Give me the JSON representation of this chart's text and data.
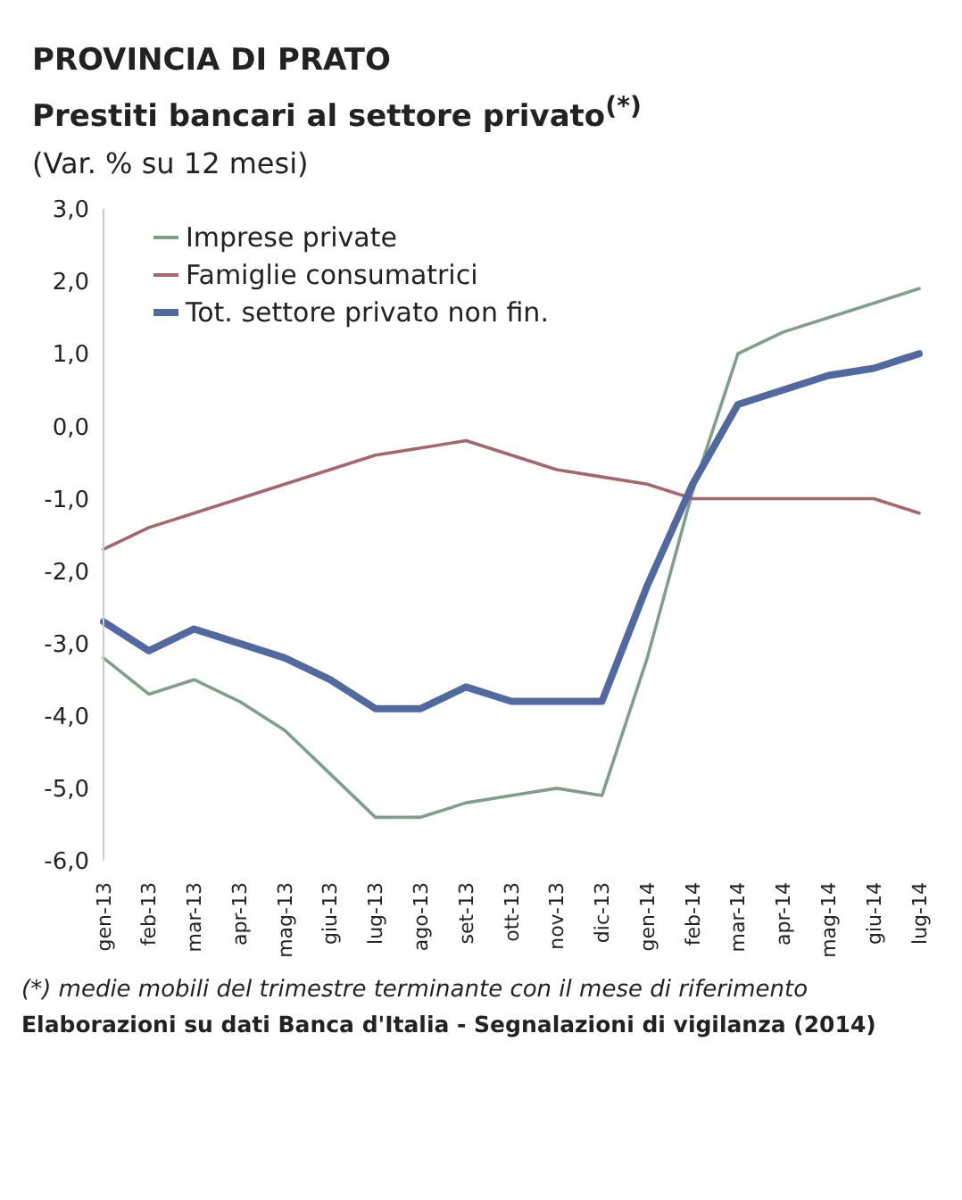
{
  "chart_data": {
    "type": "line",
    "title": "PROVINCIA DI PRATO",
    "subtitle": "Prestiti bancari al settore privato$^{(*)}$",
    "ylabel": "(Var. % su 12 mesi)",
    "categories": [
      "gen-13",
      "feb-13",
      "mar-13",
      "apr-13",
      "mag-13",
      "giu-13",
      "lug-13",
      "ago-13",
      "set-13",
      "ott-13",
      "nov-13",
      "dic-13",
      "gen-14",
      "feb-14",
      "mar-14",
      "apr-14",
      "mag-14",
      "giu-14",
      "lug-14"
    ],
    "series": [
      {
        "name": "Imprese private",
        "color": "#7f9f8c",
        "values": [
          -3.2,
          -3.7,
          -3.5,
          -3.8,
          -4.2,
          -4.8,
          -5.4,
          -5.4,
          -5.2,
          -5.1,
          -5.0,
          -5.1,
          -3.2,
          -0.9,
          1.0,
          1.3,
          1.5,
          1.7,
          1.9
        ]
      },
      {
        "name": "Famiglie consumatrici",
        "color": "#a5666e",
        "values": [
          -1.7,
          -1.4,
          -1.2,
          -1.0,
          -0.8,
          -0.6,
          -0.4,
          -0.3,
          -0.2,
          -0.4,
          -0.6,
          -0.7,
          -0.8,
          -1.0,
          -1.0,
          -1.0,
          -1.0,
          -1.0,
          -1.2
        ]
      },
      {
        "name": "Tot. settore privato non fin.",
        "color": "#5168a0",
        "values": [
          -2.7,
          -3.1,
          -2.8,
          -3.0,
          -3.2,
          -3.5,
          -3.9,
          -3.9,
          -3.6,
          -3.8,
          -3.8,
          -3.8,
          -2.2,
          -0.8,
          0.3,
          0.5,
          0.7,
          0.8,
          1.0
        ]
      }
    ],
    "ylim": [
      -6,
      3
    ],
    "yticks": [
      {
        "value": 3,
        "label": "3,0"
      },
      {
        "value": 2,
        "label": "2,0"
      },
      {
        "value": 1,
        "label": "1,0"
      },
      {
        "value": 0,
        "label": "0,0"
      },
      {
        "value": -1,
        "label": "-1,0"
      },
      {
        "value": -2,
        "label": "-2,0"
      },
      {
        "value": -3,
        "label": "-3,0"
      },
      {
        "value": -4,
        "label": "-4,0"
      },
      {
        "value": -5,
        "label": "-5,0"
      },
      {
        "value": -6,
        "label": "-6,0"
      }
    ],
    "legend": "top left",
    "grid": false,
    "marker": "none",
    "line_style": "solid",
    "annotations": [
      "(*) medie mobili del trimestre terminante con il mese di riferimento",
      "Elaborazioni su dati Banca d'Italia - Segnalazioni di vigilanza (2014)"
    ]
  }
}
